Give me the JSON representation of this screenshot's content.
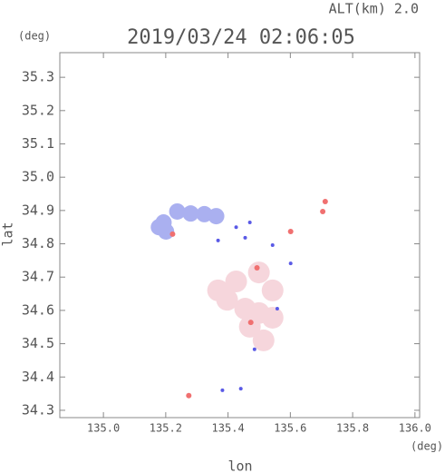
{
  "chart_data": {
    "type": "scatter",
    "title": "2019/03/24 02:06:05",
    "subtitle": "ALT(km) 2.0",
    "x_label": "lon",
    "y_label": "lat",
    "x_unit": "(deg)",
    "y_unit": "(deg)",
    "xlim": [
      134.86,
      136.015
    ],
    "ylim": [
      34.278,
      35.374
    ],
    "xticks": [
      {
        "value": 135.0,
        "label": "135.0"
      },
      {
        "value": 135.2,
        "label": "135.2"
      },
      {
        "value": 135.4,
        "label": "135.4"
      },
      {
        "value": 135.6,
        "label": "135.6"
      },
      {
        "value": 135.8,
        "label": "135.8"
      },
      {
        "value": 136.0,
        "label": "136.0"
      }
    ],
    "yticks": [
      {
        "value": 34.3,
        "label": "34.3"
      },
      {
        "value": 34.4,
        "label": "34.4"
      },
      {
        "value": 34.5,
        "label": "34.5"
      },
      {
        "value": 34.6,
        "label": "34.6"
      },
      {
        "value": 34.7,
        "label": "34.7"
      },
      {
        "value": 34.8,
        "label": "34.8"
      },
      {
        "value": 34.9,
        "label": "34.9"
      },
      {
        "value": 35.0,
        "label": "35.0"
      },
      {
        "value": 35.1,
        "label": "35.1"
      },
      {
        "value": 35.2,
        "label": "35.2"
      },
      {
        "value": 35.3,
        "label": "35.3"
      }
    ],
    "series": [
      {
        "color": "#aab0f0",
        "x": [
          135.237,
          135.28,
          135.324,
          135.362,
          135.193,
          135.201,
          135.178
        ],
        "y": [
          34.897,
          34.891,
          34.889,
          34.883,
          34.864,
          34.837,
          34.85
        ]
      },
      {
        "color": "#f6d6dc",
        "x": [
          135.499,
          135.543,
          135.426,
          135.455,
          135.499,
          135.47,
          135.514,
          135.397,
          135.368,
          135.543
        ],
        "y": [
          34.714,
          34.66,
          34.687,
          34.605,
          34.592,
          34.551,
          34.51,
          34.632,
          34.66,
          34.578
        ]
      },
      {
        "color": "#5a5ae6",
        "x": [
          135.455,
          135.543,
          135.601,
          135.426,
          135.485,
          135.382,
          135.441,
          135.558,
          135.368,
          135.47
        ],
        "y": [
          34.818,
          34.796,
          34.741,
          34.85,
          34.483,
          34.36,
          34.365,
          34.605,
          34.81,
          34.864
        ]
      },
      {
        "color": "#f07070",
        "x": [
          135.222,
          135.704,
          135.712,
          135.274,
          135.601,
          135.493,
          135.473
        ],
        "y": [
          34.829,
          34.897,
          34.927,
          34.344,
          34.837,
          34.728,
          34.564
        ]
      }
    ]
  }
}
